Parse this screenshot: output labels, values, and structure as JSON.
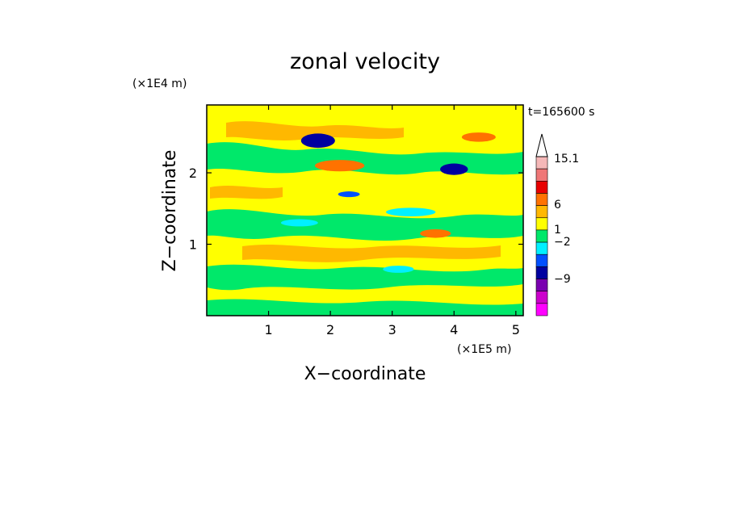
{
  "chart_data": {
    "type": "heatmap",
    "title": "zonal velocity",
    "xlabel": "X−coordinate",
    "ylabel": "Z−coordinate",
    "x_scale_label": "(×1E5 m)",
    "y_scale_label": "(×1E4 m)",
    "time_label": "t=165600 s",
    "xlim": [
      0,
      5.12
    ],
    "ylim": [
      0,
      2.95
    ],
    "x_ticks": [
      {
        "value": 1,
        "label": "1"
      },
      {
        "value": 2,
        "label": "2"
      },
      {
        "value": 3,
        "label": "3"
      },
      {
        "value": 4,
        "label": "4"
      },
      {
        "value": 5,
        "label": "5"
      }
    ],
    "y_ticks": [
      {
        "value": 1,
        "label": "1"
      },
      {
        "value": 2,
        "label": "2"
      }
    ],
    "colorbar": {
      "labels": [
        "15.1",
        "6",
        "1",
        "−2",
        "−9"
      ],
      "colors": [
        "#f5b8b8",
        "#ef7777",
        "#e80000",
        "#ff7200",
        "#ffb800",
        "#ffff00",
        "#00e86a",
        "#00f0ff",
        "#0050ff",
        "#0000a0",
        "#7a00b0",
        "#cc00cc",
        "#ff00ff"
      ],
      "extend_top": true
    },
    "regions": [
      {
        "color": "#0000a0",
        "x": 1.8,
        "y": 2.45,
        "w": 0.55,
        "h": 0.2
      },
      {
        "color": "#0000a0",
        "x": 4.0,
        "y": 2.05,
        "w": 0.45,
        "h": 0.16
      },
      {
        "color": "#ff7200",
        "x": 2.15,
        "y": 2.1,
        "w": 0.8,
        "h": 0.16
      },
      {
        "color": "#ff7200",
        "x": 4.4,
        "y": 2.5,
        "w": 0.55,
        "h": 0.13
      },
      {
        "color": "#ff7200",
        "x": 3.7,
        "y": 1.15,
        "w": 0.5,
        "h": 0.12
      },
      {
        "color": "#0050ff",
        "x": 2.3,
        "y": 1.7,
        "w": 0.35,
        "h": 0.08
      },
      {
        "color": "#00f0ff",
        "x": 3.3,
        "y": 1.45,
        "w": 0.8,
        "h": 0.12
      },
      {
        "color": "#00f0ff",
        "x": 1.5,
        "y": 1.3,
        "w": 0.6,
        "h": 0.1
      },
      {
        "color": "#00f0ff",
        "x": 3.1,
        "y": 0.65,
        "w": 0.5,
        "h": 0.1
      }
    ]
  }
}
